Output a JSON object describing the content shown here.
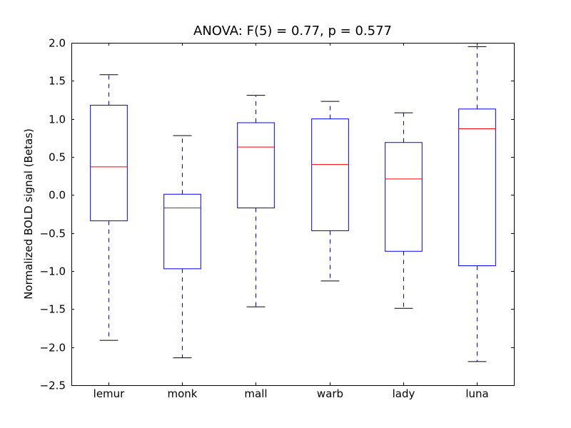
{
  "chart_data": {
    "type": "box",
    "title": "ANOVA: F(5) = 0.77, p = 0.577",
    "xlabel": "",
    "ylabel": "Normalized BOLD signal (Betas)",
    "ylim": [
      -2.5,
      2.0
    ],
    "yticks": [
      -2.5,
      -2.0,
      -1.5,
      -1.0,
      -0.5,
      0.0,
      0.5,
      1.0,
      1.5,
      2.0
    ],
    "ytick_labels": [
      "−2.5",
      "−2.0",
      "−1.5",
      "−1.0",
      "−0.5",
      "0.0",
      "0.5",
      "1.0",
      "1.5",
      "2.0"
    ],
    "grid": false,
    "categories": [
      "lemur",
      "monk",
      "mall",
      "warb",
      "lady",
      "luna"
    ],
    "boxes": [
      {
        "whisker_low": -1.91,
        "q1": -0.34,
        "median": 0.37,
        "q3": 1.18,
        "whisker_high": 1.58
      },
      {
        "whisker_low": -2.14,
        "q1": -0.97,
        "median": -0.17,
        "q3": 0.01,
        "whisker_high": 0.78
      },
      {
        "whisker_low": -1.47,
        "q1": -0.17,
        "median": 0.63,
        "q3": 0.95,
        "whisker_high": 1.31
      },
      {
        "whisker_low": -1.13,
        "q1": -0.47,
        "median": 0.4,
        "q3": 1.0,
        "whisker_high": 1.23
      },
      {
        "whisker_low": -1.49,
        "q1": -0.74,
        "median": 0.21,
        "q3": 0.69,
        "whisker_high": 1.08
      },
      {
        "whisker_low": -2.19,
        "q1": -0.93,
        "median": 0.87,
        "q3": 1.13,
        "whisker_high": 1.95
      }
    ],
    "colors": {
      "box": "#0000ff",
      "median": "#ff0000",
      "whisker": "#0000ff",
      "cap": "#000000"
    }
  }
}
